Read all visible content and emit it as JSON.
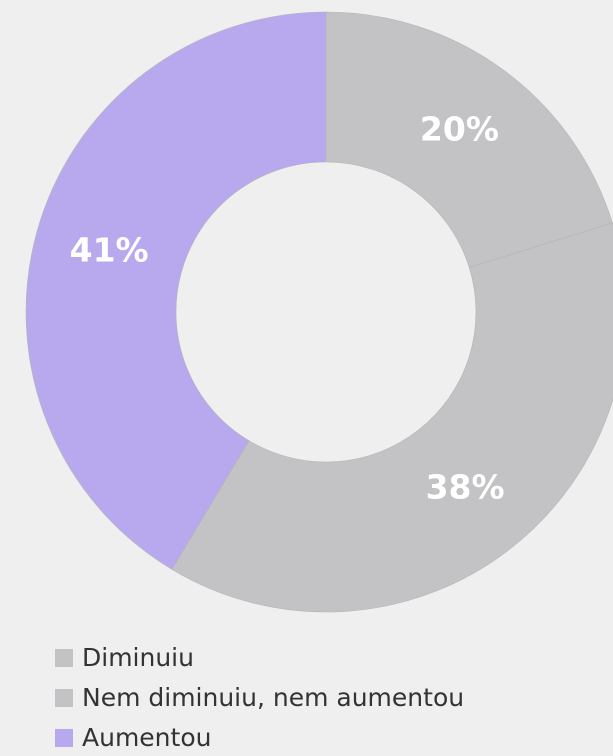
{
  "chart_data": {
    "type": "donut",
    "categories": [
      "Diminuiu",
      "Nem diminuiu, nem aumentou",
      "Aumentou"
    ],
    "values": [
      20,
      38,
      41
    ],
    "value_labels": [
      "20%",
      "38%",
      "41%"
    ],
    "colors": [
      "#c3c3c5",
      "#c3c3c5",
      "#b8a9ee"
    ],
    "legend": "bottom-left"
  }
}
